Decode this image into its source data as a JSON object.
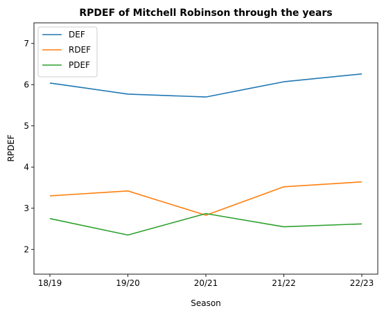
{
  "chart_data": {
    "type": "line",
    "title": "RPDEF of Mitchell Robinson through the years",
    "xlabel": "Season",
    "ylabel": "RPDEF",
    "categories": [
      "18/19",
      "19/20",
      "20/21",
      "21/22",
      "22/23"
    ],
    "ylim": [
      1.4,
      7.5
    ],
    "yticks": [
      2,
      3,
      4,
      5,
      6,
      7
    ],
    "grid": false,
    "legend": "top-left",
    "series": [
      {
        "name": "DEF",
        "color": "#1f77b4",
        "values": [
          6.04,
          5.77,
          5.7,
          6.07,
          6.26
        ]
      },
      {
        "name": "RDEF",
        "color": "#ff7f0e",
        "values": [
          3.3,
          3.42,
          2.83,
          3.52,
          3.64
        ]
      },
      {
        "name": "PDEF",
        "color": "#2ca02c",
        "values": [
          2.75,
          2.35,
          2.87,
          2.55,
          2.62
        ]
      }
    ]
  }
}
